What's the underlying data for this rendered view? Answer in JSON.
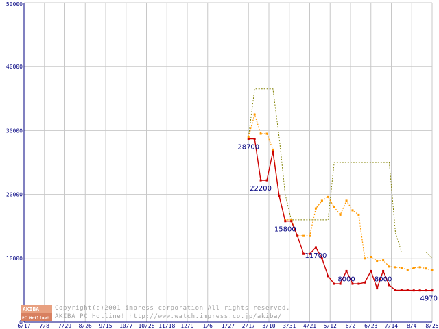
{
  "chart_data": {
    "type": "line",
    "ylim": [
      0,
      50000
    ],
    "yticks": [
      "0",
      "10000",
      "20000",
      "30000",
      "40000",
      "50000"
    ],
    "x_tick_labels": [
      "6/17",
      "7/8",
      "7/29",
      "8/26",
      "9/15",
      "10/7",
      "10/28",
      "11/18",
      "12/9",
      "1/6",
      "1/27",
      "2/17",
      "3/10",
      "3/31",
      "4/21",
      "5/12",
      "6/2",
      "6/23",
      "7/14",
      "8/4",
      "8/25"
    ],
    "grid": true,
    "colors": {
      "min": "#cc0000",
      "avg": "#ff9900",
      "max": "#808000",
      "axis": "#000080",
      "grid": "#c8c8c8"
    },
    "series": [
      {
        "key": "max",
        "x": [
          11.0,
          11.3,
          11.6,
          11.9,
          12.2,
          12.5,
          12.8,
          13.1,
          13.4,
          13.7,
          14.0,
          14.3,
          14.6,
          14.9,
          15.2,
          15.5,
          15.8,
          16.1,
          16.4,
          16.7,
          17.0,
          17.3,
          17.6,
          17.9,
          18.2,
          18.5,
          18.8,
          19.1,
          19.4,
          19.7,
          20.0
        ],
        "values": [
          29000,
          36500,
          36500,
          36500,
          36500,
          29000,
          20000,
          16000,
          16000,
          16000,
          16000,
          16000,
          16000,
          16000,
          25000,
          25000,
          25000,
          25000,
          25000,
          25000,
          25000,
          25000,
          25000,
          25000,
          14000,
          11000,
          11000,
          11000,
          11000,
          11000,
          10000
        ]
      },
      {
        "key": "avg",
        "x": [
          11.0,
          11.3,
          11.6,
          11.9,
          12.2,
          12.5,
          12.8,
          13.1,
          13.4,
          13.7,
          14.0,
          14.3,
          14.6,
          14.9,
          15.2,
          15.5,
          15.8,
          16.1,
          16.4,
          16.7,
          17.0,
          17.3,
          17.6,
          17.9,
          18.2,
          18.5,
          18.8,
          19.1,
          19.4,
          19.7,
          20.0
        ],
        "values": [
          29000,
          32500,
          29500,
          29500,
          27000,
          19800,
          16000,
          16000,
          13500,
          13500,
          13500,
          17800,
          19000,
          19600,
          18000,
          16800,
          19000,
          17500,
          16800,
          10000,
          10200,
          9600,
          9700,
          8700,
          8600,
          8500,
          8200,
          8500,
          8600,
          8400,
          8100
        ]
      },
      {
        "key": "min",
        "x": [
          11.0,
          11.3,
          11.6,
          11.9,
          12.2,
          12.5,
          12.8,
          13.1,
          13.4,
          13.7,
          14.0,
          14.3,
          14.6,
          14.9,
          15.2,
          15.5,
          15.8,
          16.1,
          16.4,
          16.7,
          17.0,
          17.3,
          17.6,
          17.9,
          18.2,
          18.5,
          18.8,
          19.1,
          19.4,
          19.7,
          20.0
        ],
        "values": [
          28700,
          28700,
          22200,
          22200,
          26700,
          19800,
          15800,
          15800,
          13500,
          10700,
          10700,
          11700,
          10000,
          7200,
          6000,
          6000,
          8000,
          6000,
          6000,
          6200,
          8000,
          5300,
          8000,
          5800,
          5000,
          5000,
          5000,
          4970,
          4970,
          4970,
          4970
        ]
      }
    ],
    "data_labels": [
      {
        "series": "min",
        "index": 0,
        "text": "28700"
      },
      {
        "series": "min",
        "index": 2,
        "text": "22200"
      },
      {
        "series": "min",
        "index": 6,
        "text": "15800"
      },
      {
        "series": "min",
        "index": 11,
        "text": "11700"
      },
      {
        "series": "min",
        "index": 16,
        "text": "8000"
      },
      {
        "series": "min",
        "index": 22,
        "text": "8000"
      },
      {
        "series": "min",
        "index": 30,
        "text": "4970"
      }
    ]
  },
  "watermark": {
    "logo_line1": "AKIBA",
    "logo_line2": "PC Hotline!",
    "credit_line1": "Copyright(c)2001 impress corporation All rights reserved.",
    "credit_line2": "AKIBA PC Hotline!  http://www.watch.impress.co.jp/akiba/"
  }
}
